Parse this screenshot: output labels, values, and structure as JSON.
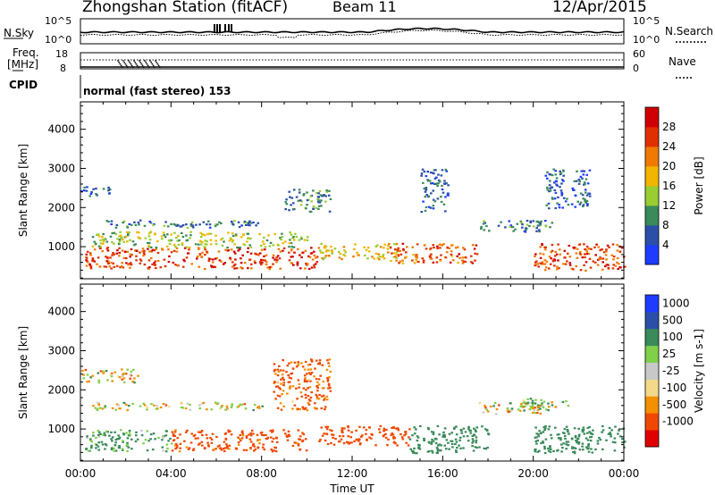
{
  "header": {
    "station": "Zhongshan Station (fitACF)",
    "beam": "Beam 11",
    "date": "12/Apr/2015"
  },
  "nsky_panel": {
    "left_label": "N.Sky",
    "left_ticks": [
      "10^5",
      "10^0"
    ],
    "right_ticks": [
      "10^5",
      "10^0"
    ],
    "right_label": "N.Search"
  },
  "freq_panel": {
    "left_label_1": "Freq.",
    "left_label_2": "[MHz]",
    "left_ticks": [
      "18",
      "8"
    ],
    "right_ticks": [
      "60",
      "0"
    ],
    "right_label": "Nave"
  },
  "cpid": {
    "label": "CPID",
    "mode_text": "normal (fast stereo) 153"
  },
  "colors": {
    "power_scale": [
      "#1e3cff",
      "#2b4fa8",
      "#3a8a5a",
      "#9acd32",
      "#f2b600",
      "#f07a00",
      "#e03000",
      "#d00000"
    ],
    "velocity_scale": [
      "#e00000",
      "#f04800",
      "#f29000",
      "#f3d98a",
      "#c8c8c8",
      "#7fd04a",
      "#3a8a5a",
      "#2b4fa8",
      "#1e3cff"
    ]
  },
  "chart_data": [
    {
      "type": "heatmap",
      "title": "Power",
      "ylabel": "Slant Range [km]",
      "xlabel": "Time UT",
      "xlim": [
        "00:00",
        "24:00"
      ],
      "ylim": [
        180,
        4700
      ],
      "x_ticks": [
        "00:00",
        "04:00",
        "08:00",
        "12:00",
        "16:00",
        "20:00",
        "00:00"
      ],
      "y_ticks": [
        1000,
        2000,
        3000,
        4000
      ],
      "colorbar": {
        "label": "Power [dB]",
        "ticks": [
          "4",
          "8",
          "12",
          "16",
          "20",
          "24",
          "28"
        ],
        "range": [
          0,
          32
        ]
      },
      "regions": [
        {
          "x": [
            0.2,
            10.5
          ],
          "y": [
            450,
            1000
          ],
          "value": 26
        },
        {
          "x": [
            0.5,
            10.0
          ],
          "y": [
            1000,
            1400
          ],
          "value": 14
        },
        {
          "x": [
            1.0,
            8.0
          ],
          "y": [
            1500,
            1700
          ],
          "value": 8
        },
        {
          "x": [
            0.0,
            1.5
          ],
          "y": [
            2300,
            2550
          ],
          "value": 6
        },
        {
          "x": [
            9.0,
            11.0
          ],
          "y": [
            1900,
            2500
          ],
          "value": 9
        },
        {
          "x": [
            10.5,
            14.0
          ],
          "y": [
            700,
            1100
          ],
          "value": 18
        },
        {
          "x": [
            13.5,
            17.5
          ],
          "y": [
            600,
            1100
          ],
          "value": 24
        },
        {
          "x": [
            15.0,
            16.2
          ],
          "y": [
            1900,
            3000
          ],
          "value": 7
        },
        {
          "x": [
            17.5,
            21.0
          ],
          "y": [
            1400,
            1700
          ],
          "value": 8
        },
        {
          "x": [
            20.0,
            24.0
          ],
          "y": [
            400,
            1100
          ],
          "value": 25
        },
        {
          "x": [
            20.5,
            22.5
          ],
          "y": [
            2000,
            3000
          ],
          "value": 6
        }
      ]
    },
    {
      "type": "heatmap",
      "title": "Velocity",
      "ylabel": "Slant Range [km]",
      "xlabel": "Time UT",
      "xlim": [
        "00:00",
        "24:00"
      ],
      "ylim": [
        180,
        4700
      ],
      "x_ticks": [
        "00:00",
        "04:00",
        "08:00",
        "12:00",
        "16:00",
        "20:00",
        "00:00"
      ],
      "y_ticks": [
        1000,
        2000,
        3000,
        4000
      ],
      "colorbar": {
        "label": "Velocity [m s-1]",
        "ticks": [
          "1000",
          "500",
          "100",
          "25",
          "-25",
          "-100",
          "-500",
          "-1000"
        ],
        "range": [
          -1000,
          1000
        ]
      },
      "regions": [
        {
          "x": [
            0.2,
            4.0
          ],
          "y": [
            450,
            1000
          ],
          "value": 150
        },
        {
          "x": [
            4.0,
            10.0
          ],
          "y": [
            450,
            1000
          ],
          "value": -200
        },
        {
          "x": [
            0.5,
            8.0
          ],
          "y": [
            1500,
            1700
          ],
          "value": 0
        },
        {
          "x": [
            0.0,
            2.5
          ],
          "y": [
            2200,
            2550
          ],
          "value": 0
        },
        {
          "x": [
            8.5,
            11.0
          ],
          "y": [
            1500,
            2800
          ],
          "value": -150
        },
        {
          "x": [
            10.5,
            14.5
          ],
          "y": [
            600,
            1100
          ],
          "value": -300
        },
        {
          "x": [
            14.5,
            18.0
          ],
          "y": [
            400,
            1100
          ],
          "value": 300
        },
        {
          "x": [
            17.5,
            20.5
          ],
          "y": [
            1400,
            1700
          ],
          "value": 0
        },
        {
          "x": [
            20.0,
            24.0
          ],
          "y": [
            400,
            1100
          ],
          "value": 300
        },
        {
          "x": [
            19.0,
            21.5
          ],
          "y": [
            1500,
            1800
          ],
          "value": 80
        }
      ]
    }
  ]
}
